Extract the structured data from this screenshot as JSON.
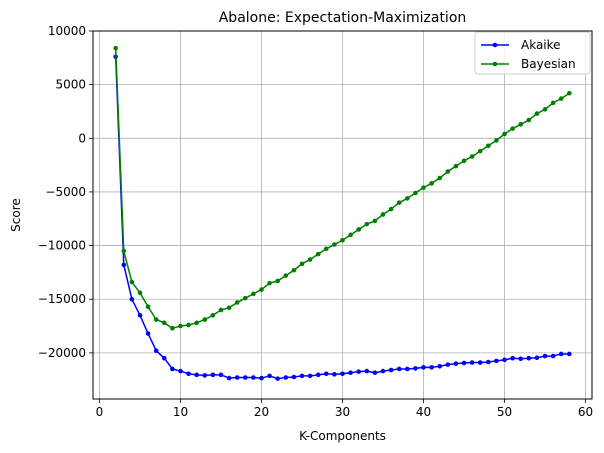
{
  "chart_data": {
    "type": "line",
    "title": "Abalone: Expectation-Maximization",
    "xlabel": "K-Components",
    "ylabel": "Score",
    "xlim": [
      -0.8,
      60.8
    ],
    "ylim": [
      -24300,
      10000
    ],
    "xticks": [
      0,
      10,
      20,
      30,
      40,
      50,
      60
    ],
    "yticks": [
      -20000,
      -15000,
      -10000,
      -5000,
      0,
      5000,
      10000
    ],
    "grid": true,
    "legend": "top-right",
    "x": [
      2,
      3,
      4,
      5,
      6,
      7,
      8,
      9,
      10,
      11,
      12,
      13,
      14,
      15,
      16,
      17,
      18,
      19,
      20,
      21,
      22,
      23,
      24,
      25,
      26,
      27,
      28,
      29,
      30,
      31,
      32,
      33,
      34,
      35,
      36,
      37,
      38,
      39,
      40,
      41,
      42,
      43,
      44,
      45,
      46,
      47,
      48,
      49,
      50,
      51,
      52,
      53,
      54,
      55,
      56,
      57,
      58
    ],
    "series": [
      {
        "name": "Akaike",
        "color": "#0000ff",
        "values": [
          7600,
          -11800,
          -15000,
          -16500,
          -18200,
          -19800,
          -20500,
          -21500,
          -21700,
          -21950,
          -22050,
          -22100,
          -22050,
          -22050,
          -22350,
          -22300,
          -22300,
          -22300,
          -22350,
          -22150,
          -22400,
          -22300,
          -22250,
          -22150,
          -22150,
          -22050,
          -21950,
          -22000,
          -21950,
          -21850,
          -21750,
          -21700,
          -21850,
          -21700,
          -21600,
          -21500,
          -21500,
          -21450,
          -21350,
          -21350,
          -21250,
          -21100,
          -21000,
          -20950,
          -20900,
          -20900,
          -20850,
          -20750,
          -20650,
          -20500,
          -20550,
          -20500,
          -20450,
          -20300,
          -20300,
          -20100,
          -20100
        ]
      },
      {
        "name": "Bayesian",
        "color": "#008000",
        "values": [
          8400,
          -10500,
          -13400,
          -14400,
          -15700,
          -16900,
          -17200,
          -17700,
          -17500,
          -17400,
          -17200,
          -16900,
          -16500,
          -16000,
          -15800,
          -15300,
          -14900,
          -14500,
          -14100,
          -13500,
          -13300,
          -12800,
          -12300,
          -11700,
          -11300,
          -10800,
          -10300,
          -9900,
          -9500,
          -9000,
          -8500,
          -8000,
          -7700,
          -7100,
          -6600,
          -6000,
          -5600,
          -5100,
          -4600,
          -4200,
          -3700,
          -3100,
          -2600,
          -2100,
          -1700,
          -1200,
          -700,
          -200,
          400,
          900,
          1300,
          1700,
          2300,
          2700,
          3300,
          3700,
          4200
        ]
      }
    ]
  }
}
